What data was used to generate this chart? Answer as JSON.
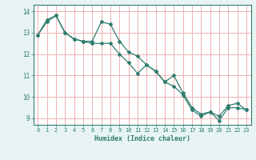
{
  "xlabel": "Humidex (Indice chaleur)",
  "ylabel": "",
  "bg_color": "#e8f4f4",
  "plot_bg_color": "#ffffff",
  "line_color": "#2e7d6e",
  "grid_color": "#f0b0b0",
  "xlim": [
    -0.5,
    23.5
  ],
  "ylim": [
    8.7,
    14.3
  ],
  "yticks": [
    9,
    10,
    11,
    12,
    13,
    14
  ],
  "xticks": [
    0,
    1,
    2,
    3,
    4,
    5,
    6,
    7,
    8,
    9,
    10,
    11,
    12,
    13,
    14,
    15,
    16,
    17,
    18,
    19,
    20,
    21,
    22,
    23
  ],
  "line1_x": [
    0,
    1,
    2,
    3,
    4,
    5,
    6,
    7,
    8,
    9,
    10,
    11,
    12,
    13,
    14,
    15,
    16,
    17,
    18,
    19,
    20,
    21,
    22,
    23
  ],
  "line1_y": [
    12.9,
    13.6,
    13.8,
    13.0,
    12.7,
    12.6,
    12.6,
    13.5,
    13.4,
    12.6,
    12.1,
    11.9,
    11.5,
    11.2,
    10.7,
    10.5,
    10.1,
    9.4,
    9.1,
    9.3,
    8.9,
    9.5,
    9.5,
    9.4
  ],
  "line2_x": [
    0,
    1,
    2,
    3,
    4,
    5,
    6,
    7,
    8,
    9,
    10,
    11,
    12,
    13,
    14,
    15,
    16,
    17,
    18,
    19,
    20,
    21,
    22,
    23
  ],
  "line2_y": [
    12.9,
    13.5,
    13.8,
    13.0,
    12.7,
    12.6,
    12.5,
    12.5,
    12.5,
    12.0,
    11.6,
    11.1,
    11.5,
    11.2,
    10.7,
    11.0,
    10.2,
    9.5,
    9.2,
    9.3,
    9.1,
    9.6,
    9.7,
    9.4
  ],
  "tick_fontsize": 5.0,
  "xlabel_fontsize": 6.0
}
